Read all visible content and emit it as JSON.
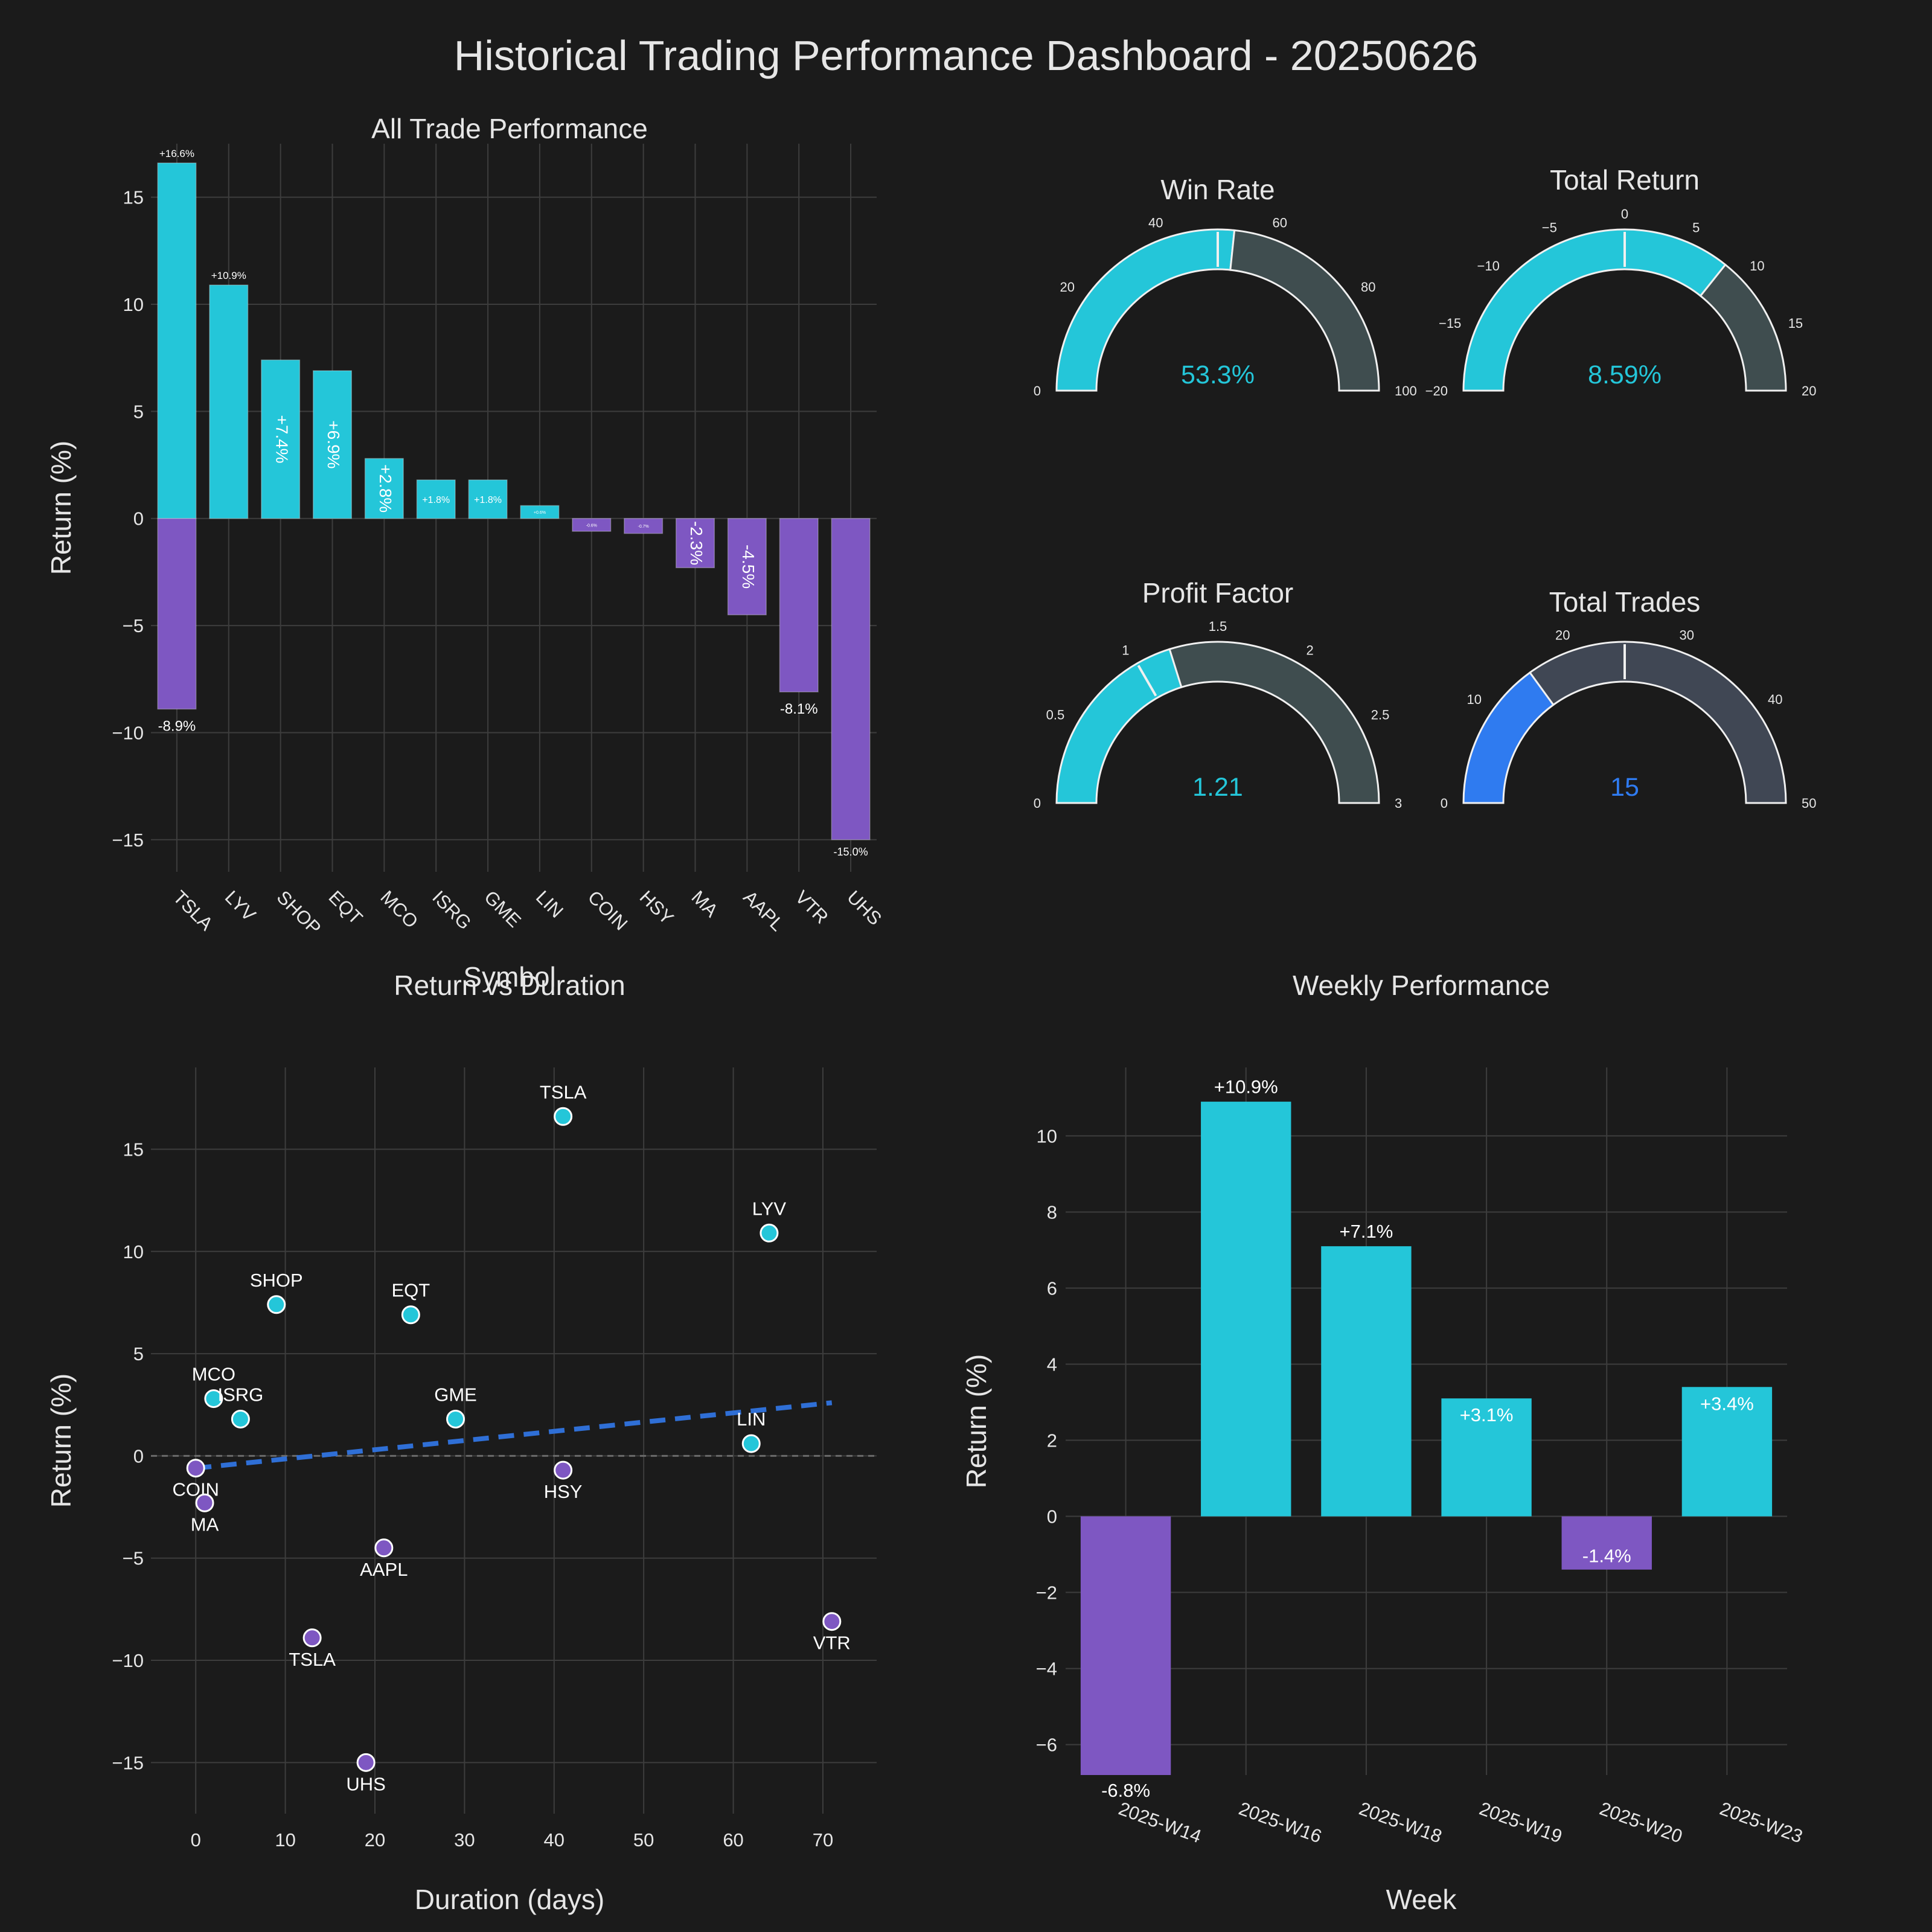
{
  "dashboard_title": "Historical Trading Performance Dashboard - 20250626",
  "colors": {
    "positive": "#24c6d9",
    "negative": "#7e57c2",
    "trades": "#2f7bf0",
    "trend": "#2f6fd6",
    "gauge_rest": "#3f4d4f",
    "gauge_rest_trades": "#404754",
    "background": "#1b1b1b"
  },
  "chart_data": [
    {
      "type": "bar",
      "title": "All Trade Performance",
      "xlabel": "Symbol",
      "ylabel": "Return (%)",
      "categories": [
        "TSLA",
        "LYV",
        "SHOP",
        "EQT",
        "MCO",
        "ISRG",
        "GME",
        "LIN",
        "COIN",
        "HSY",
        "MA",
        "AAPL",
        "VTR",
        "UHS"
      ],
      "values": [
        16.6,
        10.9,
        7.4,
        6.9,
        2.8,
        1.8,
        1.8,
        0.6,
        -0.6,
        -0.7,
        -2.3,
        -4.5,
        -8.1,
        -15.0
      ],
      "data_labels": [
        "+16.6%",
        "+10.9%",
        "+7.4%",
        "+6.9%",
        "+2.8%",
        "+1.8%",
        "+1.8%",
        "+0.6%",
        "-0.6%",
        "-0.7%",
        "-2.3%",
        "-4.5%",
        "-8.1%",
        "-15.0%"
      ],
      "extra_bar": {
        "category": "TSLA",
        "value": -8.9,
        "label": "-8.9%"
      },
      "yticks": [
        15,
        10,
        5,
        0,
        -5,
        -10,
        -15
      ],
      "ytick_labels": [
        "15",
        "10",
        "5",
        "0",
        "−5",
        "−10",
        "−15"
      ],
      "ylim": [
        -16.5,
        17.5
      ],
      "grid": true
    },
    {
      "type": "gauge",
      "gauges": [
        {
          "title": "Win Rate",
          "value": 53.3,
          "display": "53.3%",
          "range": [
            0,
            100
          ],
          "threshold": 50,
          "ticks": [
            0,
            20,
            40,
            60,
            80,
            100
          ],
          "tick_labels": [
            "0",
            "20",
            "40",
            "60",
            "80",
            "100"
          ]
        },
        {
          "title": "Total Return",
          "value": 8.59,
          "display": "8.59%",
          "range": [
            -20,
            20
          ],
          "threshold": 0,
          "ticks": [
            -20,
            -15,
            -10,
            -5,
            0,
            5,
            10,
            15,
            20
          ],
          "tick_labels": [
            "−20",
            "−15",
            "−10",
            "−5",
            "0",
            "5",
            "10",
            "15",
            "20"
          ]
        },
        {
          "title": "Profit Factor",
          "value": 1.21,
          "display": "1.21",
          "range": [
            0,
            3
          ],
          "threshold": 1,
          "ticks": [
            0,
            0.5,
            1,
            1.5,
            2,
            2.5,
            3
          ],
          "tick_labels": [
            "0",
            "0.5",
            "1",
            "1.5",
            "2",
            "2.5",
            "3"
          ]
        },
        {
          "title": "Total Trades",
          "value": 15,
          "display": "15",
          "range": [
            0,
            50
          ],
          "threshold": 25,
          "ticks": [
            0,
            10,
            20,
            30,
            40,
            50
          ],
          "tick_labels": [
            "0",
            "10",
            "20",
            "30",
            "40",
            "50"
          ]
        }
      ]
    },
    {
      "type": "scatter",
      "title": "Return vs Duration",
      "xlabel": "Duration (days)",
      "ylabel": "Return (%)",
      "points": [
        {
          "label": "TSLA",
          "x": 41,
          "y": 16.6
        },
        {
          "label": "LYV",
          "x": 64,
          "y": 10.9
        },
        {
          "label": "SHOP",
          "x": 9,
          "y": 7.4
        },
        {
          "label": "EQT",
          "x": 24,
          "y": 6.9
        },
        {
          "label": "MCO",
          "x": 2,
          "y": 2.8
        },
        {
          "label": "ISRG",
          "x": 5,
          "y": 1.8
        },
        {
          "label": "GME",
          "x": 29,
          "y": 1.8
        },
        {
          "label": "LIN",
          "x": 62,
          "y": 0.6
        },
        {
          "label": "COIN",
          "x": 0,
          "y": -0.6
        },
        {
          "label": "HSY",
          "x": 41,
          "y": -0.7
        },
        {
          "label": "MA",
          "x": 1,
          "y": -2.3
        },
        {
          "label": "AAPL",
          "x": 21,
          "y": -4.5
        },
        {
          "label": "TSLA",
          "x": 13,
          "y": -8.9
        },
        {
          "label": "VTR",
          "x": 71,
          "y": -8.1
        },
        {
          "label": "UHS",
          "x": 19,
          "y": -15.0
        }
      ],
      "trendline": {
        "x": [
          0,
          71
        ],
        "y": [
          -0.6,
          2.6
        ]
      },
      "xticks": [
        0,
        10,
        20,
        30,
        40,
        50,
        60,
        70
      ],
      "xtick_labels": [
        "0",
        "10",
        "20",
        "30",
        "40",
        "50",
        "60",
        "70"
      ],
      "yticks": [
        15,
        10,
        5,
        0,
        -5,
        -10,
        -15
      ],
      "ytick_labels": [
        "15",
        "10",
        "5",
        "0",
        "−5",
        "−10",
        "−15"
      ],
      "xlim": [
        -5,
        76
      ],
      "ylim": [
        -17.5,
        19
      ],
      "grid": true
    },
    {
      "type": "bar",
      "title": "Weekly Performance",
      "xlabel": "Week",
      "ylabel": "Return (%)",
      "categories": [
        "2025-W14",
        "2025-W16",
        "2025-W18",
        "2025-W19",
        "2025-W20",
        "2025-W23"
      ],
      "values": [
        -6.8,
        10.9,
        7.1,
        3.1,
        -1.4,
        3.4
      ],
      "data_labels": [
        "-6.8%",
        "+10.9%",
        "+7.1%",
        "+3.1%",
        "-1.4%",
        "+3.4%"
      ],
      "yticks": [
        10,
        8,
        6,
        4,
        2,
        0,
        -2,
        -4,
        -6
      ],
      "ytick_labels": [
        "10",
        "8",
        "6",
        "4",
        "2",
        "0",
        "−2",
        "−4",
        "−6"
      ],
      "ylim": [
        -6.8,
        11.8
      ],
      "grid": true
    }
  ]
}
